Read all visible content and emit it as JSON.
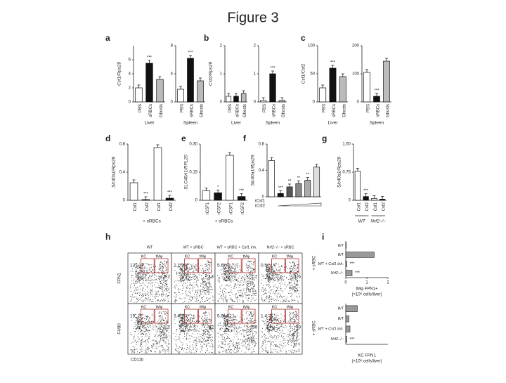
{
  "title": "Figure 3",
  "panels": [
    {
      "label": "a",
      "plots": [
        {
          "ylabel": "Csf1/Rps29",
          "ylim": [
            0,
            8
          ],
          "yticks": [
            0,
            2,
            4,
            6
          ],
          "categories": [
            "PBS",
            "sRBCs",
            "Ghosts"
          ],
          "values": [
            2,
            5.5,
            3.2
          ],
          "colors": [
            "#ffffff",
            "#111111",
            "#bbbbbb"
          ],
          "annotations": [
            null,
            "***",
            null
          ],
          "group": "Liver"
        },
        {
          "ylim": [
            0,
            8
          ],
          "yticks": [
            0,
            4,
            8
          ],
          "categories": [
            "PBS",
            "sRBCs",
            "Ghosts"
          ],
          "values": [
            1.8,
            6.2,
            3.0
          ],
          "colors": [
            "#ffffff",
            "#111111",
            "#bbbbbb"
          ],
          "annotations": [
            null,
            "***",
            null
          ],
          "group": "Spleen"
        }
      ]
    },
    {
      "label": "b",
      "plots": [
        {
          "ylabel": "Csf2/Rps29",
          "ylim": [
            0,
            2
          ],
          "yticks": [
            0,
            1,
            2
          ],
          "categories": [
            "PBS",
            "sRBCs",
            "Ghosts"
          ],
          "values": [
            0.2,
            0.2,
            0.3
          ],
          "colors": [
            "#ffffff",
            "#111111",
            "#bbbbbb"
          ],
          "annotations": [
            null,
            null,
            null
          ],
          "group": "Liver"
        },
        {
          "ylim": [
            0,
            2
          ],
          "yticks": [
            0,
            1,
            2
          ],
          "categories": [
            "PBS",
            "sRBCs",
            "Ghosts"
          ],
          "values": [
            0.05,
            1.0,
            0.05
          ],
          "colors": [
            "#ffffff",
            "#111111",
            "#bbbbbb"
          ],
          "annotations": [
            null,
            "***",
            null
          ],
          "group": "Spleen"
        }
      ]
    },
    {
      "label": "c",
      "plots": [
        {
          "ylabel": "Csf1/Csf2",
          "ylim": [
            0,
            100
          ],
          "yticks": [
            0,
            50,
            100
          ],
          "categories": [
            "PBS",
            "sRBCs",
            "Ghosts"
          ],
          "values": [
            25,
            60,
            45
          ],
          "colors": [
            "#ffffff",
            "#111111",
            "#bbbbbb"
          ],
          "annotations": [
            null,
            "***",
            null
          ],
          "group": "Liver"
        },
        {
          "ylim": [
            0,
            200
          ],
          "yticks": [
            0,
            100,
            200
          ],
          "categories": [
            "PBS",
            "sRBCs",
            "Ghosts"
          ],
          "values": [
            105,
            20,
            145
          ],
          "colors": [
            "#ffffff",
            "#111111",
            "#bbbbbb"
          ],
          "annotations": [
            null,
            "***",
            null
          ],
          "group": "Spleen"
        }
      ]
    },
    {
      "label": "d",
      "plots": [
        {
          "ylabel": "Slc40a1/Rps29",
          "ylim": [
            0,
            0.8
          ],
          "yticks": [
            0,
            0.4,
            0.8
          ],
          "categories": [
            "Csf1",
            "Csf2",
            "Csf1",
            "Csf2"
          ],
          "values": [
            0.25,
            0.01,
            0.75,
            0.03
          ],
          "colors": [
            "#ffffff",
            "#111111",
            "#ffffff",
            "#111111"
          ],
          "annotations": [
            null,
            "***",
            null,
            "***"
          ],
          "group": "+ sRBCs"
        }
      ]
    },
    {
      "label": "e",
      "plots": [
        {
          "ylabel": "SLC40A1/RPL20",
          "ylim": [
            0,
            0.3
          ],
          "yticks": [
            0,
            0.15,
            {
              "value": 0.3,
              "label": "0.30"
            }
          ],
          "categories": [
            "rCSF1",
            "rCSF2",
            "rCSF1",
            "rCSF2"
          ],
          "values": [
            0.05,
            0.04,
            0.24,
            0.02
          ],
          "colors": [
            "#ffffff",
            "#111111",
            "#ffffff",
            "#111111"
          ],
          "annotations": [
            null,
            "*",
            null,
            "***"
          ],
          "group": "+ sRBCs"
        }
      ]
    },
    {
      "label": "f",
      "plots": [
        {
          "ylabel": "Slc40a1/Rps29",
          "ylim": [
            0,
            0.8
          ],
          "yticks": [
            0,
            0.4,
            0.8
          ],
          "row_labels": [
            "rCsf1",
            "rCsf2"
          ],
          "values": [
            0.55,
            0.05,
            0.15,
            0.2,
            0.25,
            0.45
          ],
          "colors": [
            "#ffffff",
            "#111111",
            "#555555",
            "#888888",
            "#aaaaaa",
            "#dddddd"
          ],
          "annotations": [
            null,
            "***",
            "**",
            "**",
            "**",
            null
          ]
        }
      ]
    },
    {
      "label": "g",
      "plots": [
        {
          "ylabel": "Slc40a1/Rps29",
          "ylim": [
            0,
            1.5
          ],
          "yticks": [
            0,
            0.75,
            {
              "value": 1.5,
              "label": "1.50"
            }
          ],
          "categories": [
            "Csf1",
            "Csf2",
            "Csf1",
            "Csf2"
          ],
          "values": [
            0.78,
            0.1,
            0.05,
            0.03
          ],
          "colors": [
            "#ffffff",
            "#111111",
            "#ffffff",
            "#111111"
          ],
          "annotations": [
            null,
            "***",
            null,
            null
          ],
          "groups": [
            "WT",
            "Nrf2−/−"
          ]
        }
      ]
    }
  ],
  "h": {
    "label": "h",
    "columns": [
      "WT",
      "WT + sRBC",
      "WT + sRBC + Csf1 inh.",
      "Nrf2−/− + sRBC"
    ],
    "gate_labels": [
      "KC",
      "tMφ"
    ],
    "xlabel": "CD11b",
    "rows": [
      {
        "ylabel": "FPN1",
        "cells": [
          [
            "13",
            "0.2"
          ],
          [
            "2.1",
            "13"
          ],
          [
            "5.6",
            "1.7"
          ],
          [
            "0.5",
            "1.6"
          ]
        ]
      },
      {
        "ylabel": "F4/80",
        "cells": [
          [
            "19",
            "1.7"
          ],
          [
            "3.4",
            "52"
          ],
          [
            "5.8",
            "56"
          ],
          [
            "1.4",
            "49"
          ]
        ]
      }
    ]
  },
  "i": {
    "label": "i",
    "side_label": "+ sRBC",
    "plots": [
      {
        "categories": [
          "WT",
          "WT",
          "WT + Csf1 inh.",
          "Nrf2−/−"
        ],
        "values": [
          0.02,
          1.35,
          0.05,
          0.3
        ],
        "annotations": [
          null,
          null,
          "***",
          "***"
        ],
        "xlim": [
          0,
          2
        ],
        "xticks": [
          0,
          1,
          2
        ],
        "xlabel": [
          "tMφ FPN1+",
          "(×10⁶ cells/liver)"
        ]
      },
      {
        "categories": [
          "WT",
          "WT",
          "WT + Csf1 inh.",
          "Nrf2−/−"
        ],
        "values": [
          0.55,
          0.15,
          0.2,
          0.05
        ],
        "annotations": [
          null,
          null,
          null,
          "***"
        ],
        "xlim": [
          0,
          2
        ],
        "xlabel": [
          "KC FPN1",
          "(×10⁶ cells/liver)"
        ]
      }
    ]
  }
}
